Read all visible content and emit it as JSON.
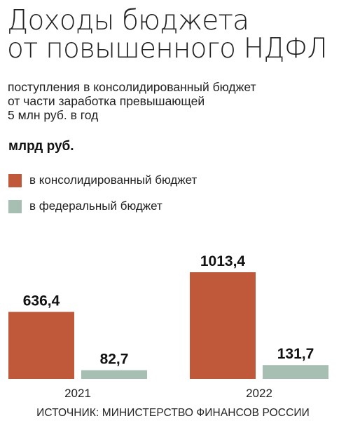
{
  "title": "Доходы бюджета\nот повышенного НДФЛ",
  "subtitle": "поступления в консолидированный бюджет\nот части заработка превышающей\n5 млн руб. в год",
  "unit": "млрд руб.",
  "legend": [
    {
      "label": "в консолидированный бюджет",
      "color": "#c0593a"
    },
    {
      "label": "в федеральный бюджет",
      "color": "#a7bfb2"
    }
  ],
  "source": "ИСТОЧНИК: МИНИСТЕРСТВО ФИНАНСОВ РОССИИ",
  "chart_data": {
    "type": "bar",
    "categories": [
      "2021",
      "2022"
    ],
    "series": [
      {
        "name": "в консолидированный бюджет",
        "values": [
          636.4,
          1013.4
        ],
        "labels": [
          "636,4",
          "1013,4"
        ],
        "color": "#c0593a"
      },
      {
        "name": "в федеральный бюджет",
        "values": [
          82.7,
          131.7
        ],
        "labels": [
          "82,7",
          "131,7"
        ],
        "color": "#a7bfb2"
      }
    ],
    "title": "Доходы бюджета от повышенного НДФЛ",
    "ylabel": "млрд руб.",
    "xlabel": "",
    "ylim": [
      0,
      1013.4
    ],
    "grid": false,
    "legend_position": "top-left"
  }
}
